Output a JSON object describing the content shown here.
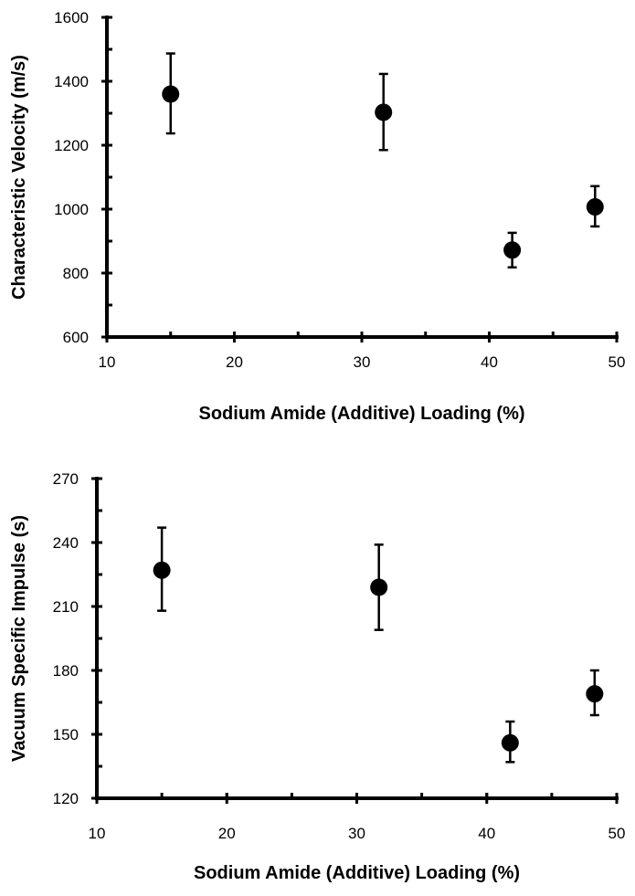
{
  "chart_data": [
    {
      "type": "scatter",
      "title": "",
      "xlabel": "Sodium Amide (Additive) Loading (%)",
      "ylabel": "Characteristic Velocity (m/s)",
      "xlim": [
        10,
        50
      ],
      "ylim": [
        600,
        1600
      ],
      "xticks": [
        10,
        20,
        30,
        40,
        50
      ],
      "yticks": [
        600,
        800,
        1000,
        1200,
        1400,
        1600
      ],
      "x_minor_step": 5,
      "y_minor_step": 100,
      "grid": false,
      "series": [
        {
          "x": [
            15,
            31.7,
            41.8,
            48.3
          ],
          "y": [
            1360,
            1303,
            872,
            1007
          ],
          "err_low": [
            1237,
            1185,
            818,
            946
          ],
          "err_high": [
            1487,
            1423,
            926,
            1072
          ]
        }
      ],
      "marker_color": "#000000"
    },
    {
      "type": "scatter",
      "title": "",
      "xlabel": "Sodium Amide (Additive) Loading (%)",
      "ylabel": "Vacuum Specific Impulse (s)",
      "xlim": [
        10,
        50
      ],
      "ylim": [
        120,
        270
      ],
      "xticks": [
        10,
        20,
        30,
        40,
        50
      ],
      "yticks": [
        120,
        150,
        180,
        210,
        240,
        270
      ],
      "x_minor_step": 5,
      "y_minor_step": 15,
      "grid": false,
      "series": [
        {
          "x": [
            15,
            31.7,
            41.8,
            48.3
          ],
          "y": [
            227,
            219,
            146,
            169
          ],
          "err_low": [
            208,
            199,
            137,
            159
          ],
          "err_high": [
            247,
            239,
            156,
            180
          ]
        }
      ],
      "marker_color": "#000000"
    }
  ]
}
